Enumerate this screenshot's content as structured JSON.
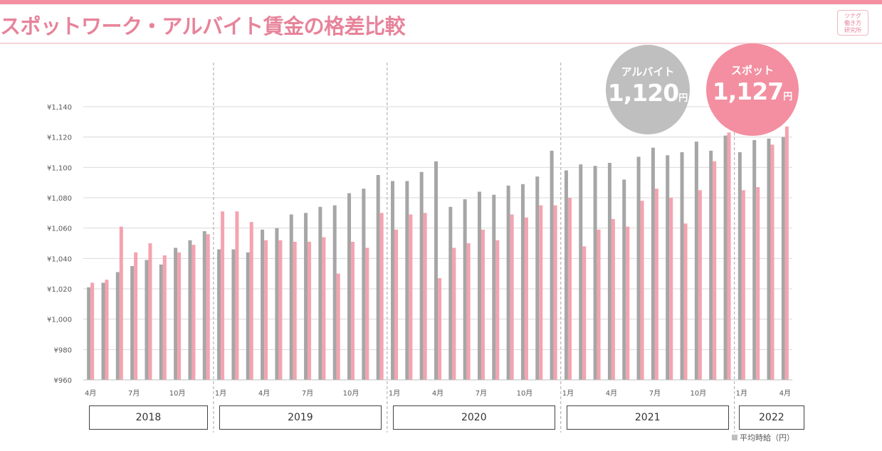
{
  "title": "スポットワーク・アルバイト賃金の格差比較",
  "logo": {
    "line1": "ツナグ",
    "line2": "働き方",
    "line3": "研究所"
  },
  "bubbles": {
    "arbeit": {
      "label": "アルバイト",
      "value": "1,120",
      "unit": "円",
      "color": "#bfbfbf"
    },
    "spot": {
      "label": "スポット",
      "value": "1,127",
      "unit": "円",
      "color": "#f38fa0"
    }
  },
  "legend": {
    "label": "平均時給（円）"
  },
  "colors": {
    "arbeit_bar": "#a6a6a6",
    "spot_bar": "#f4a3b0",
    "accent": "#e7839a"
  },
  "chart_data": {
    "type": "bar",
    "ylim": [
      960,
      1140
    ],
    "y_ticks": [
      "¥960",
      "¥980",
      "¥1,000",
      "¥1,020",
      "¥1,040",
      "¥1,060",
      "¥1,080",
      "¥1,100",
      "¥1,120",
      "¥1,140"
    ],
    "x_tick_labels": [
      {
        "index": 0,
        "label": "4月"
      },
      {
        "index": 3,
        "label": "7月"
      },
      {
        "index": 6,
        "label": "10月"
      },
      {
        "index": 9,
        "label": "1月"
      },
      {
        "index": 12,
        "label": "4月"
      },
      {
        "index": 15,
        "label": "7月"
      },
      {
        "index": 18,
        "label": "10月"
      },
      {
        "index": 21,
        "label": "1月"
      },
      {
        "index": 24,
        "label": "4月"
      },
      {
        "index": 27,
        "label": "7月"
      },
      {
        "index": 30,
        "label": "10月"
      },
      {
        "index": 33,
        "label": "1月"
      },
      {
        "index": 36,
        "label": "4月"
      },
      {
        "index": 39,
        "label": "7月"
      },
      {
        "index": 42,
        "label": "10月"
      },
      {
        "index": 45,
        "label": "1月"
      },
      {
        "index": 48,
        "label": "4月"
      }
    ],
    "categories": [
      "2018-04",
      "2018-05",
      "2018-06",
      "2018-07",
      "2018-08",
      "2018-09",
      "2018-10",
      "2018-11",
      "2018-12",
      "2019-01",
      "2019-02",
      "2019-03",
      "2019-04",
      "2019-05",
      "2019-06",
      "2019-07",
      "2019-08",
      "2019-09",
      "2019-10",
      "2019-11",
      "2019-12",
      "2020-01",
      "2020-02",
      "2020-03",
      "2020-04",
      "2020-05",
      "2020-06",
      "2020-07",
      "2020-08",
      "2020-09",
      "2020-10",
      "2020-11",
      "2020-12",
      "2021-01",
      "2021-02",
      "2021-03",
      "2021-04",
      "2021-05",
      "2021-06",
      "2021-07",
      "2021-08",
      "2021-09",
      "2021-10",
      "2021-11",
      "2021-12",
      "2022-01",
      "2022-02",
      "2022-03",
      "2022-04"
    ],
    "series": [
      {
        "name": "アルバイト",
        "values": [
          1021,
          1024,
          1031,
          1035,
          1039,
          1036,
          1047,
          1052,
          1058,
          1046,
          1046,
          1044,
          1059,
          1060,
          1069,
          1070,
          1074,
          1075,
          1083,
          1086,
          1095,
          1091,
          1091,
          1097,
          1104,
          1074,
          1079,
          1084,
          1082,
          1088,
          1089,
          1094,
          1111,
          1098,
          1102,
          1101,
          1103,
          1092,
          1107,
          1113,
          1108,
          1110,
          1117,
          1111,
          1121,
          1110,
          1118,
          1119,
          1120
        ]
      },
      {
        "name": "スポット",
        "values": [
          1024,
          1026,
          1061,
          1044,
          1050,
          1042,
          1044,
          1049,
          1056,
          1071,
          1071,
          1064,
          1052,
          1052,
          1051,
          1051,
          1054,
          1030,
          1051,
          1047,
          1070,
          1059,
          1069,
          1070,
          1027,
          1047,
          1050,
          1059,
          1052,
          1069,
          1067,
          1075,
          1075,
          1080,
          1048,
          1059,
          1066,
          1061,
          1078,
          1086,
          1080,
          1063,
          1085,
          1104,
          1123,
          1085,
          1087,
          1115,
          1127
        ]
      }
    ],
    "year_groups": [
      {
        "label": "2018",
        "start": 0,
        "end": 8
      },
      {
        "label": "2019",
        "start": 9,
        "end": 20
      },
      {
        "label": "2020",
        "start": 21,
        "end": 32
      },
      {
        "label": "2021",
        "start": 33,
        "end": 44
      },
      {
        "label": "2022",
        "start": 45,
        "end": 48
      }
    ],
    "grid": true
  }
}
